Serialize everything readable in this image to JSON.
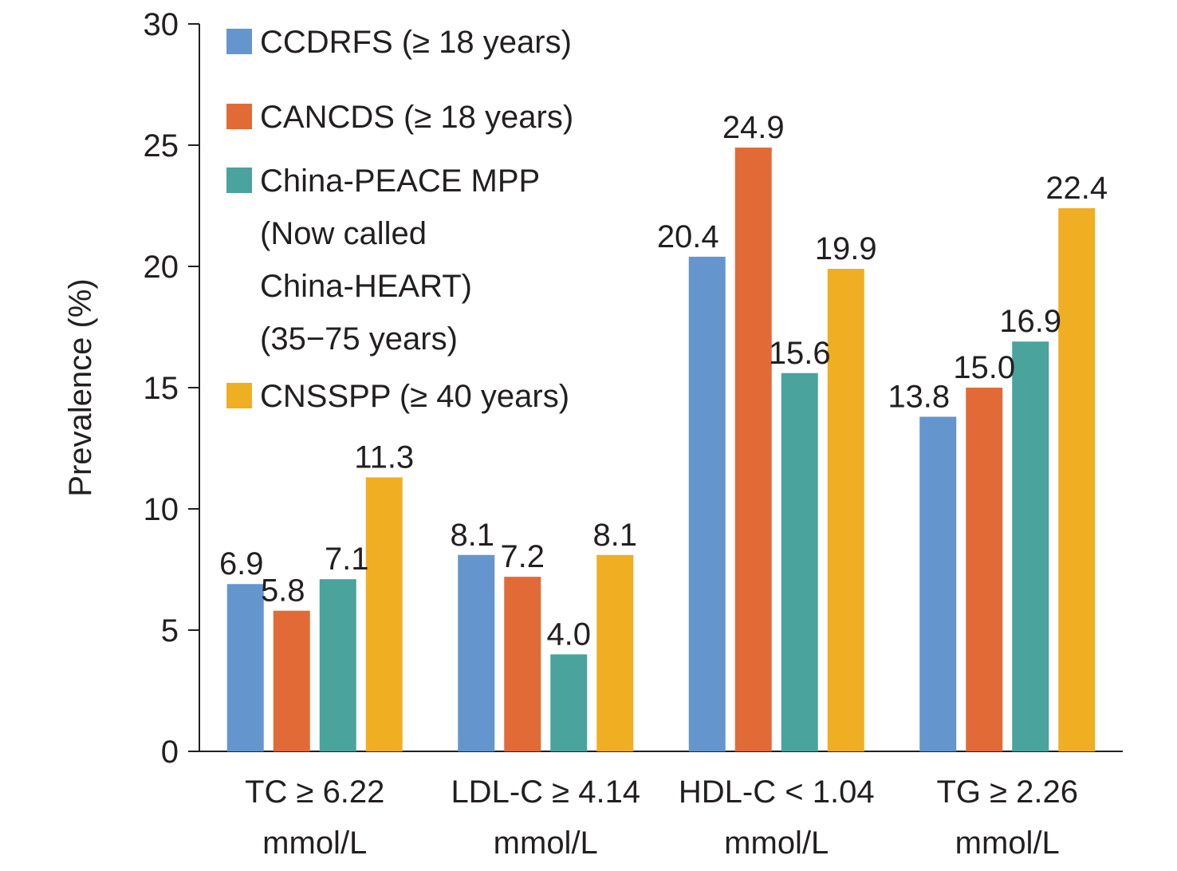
{
  "chart_data": {
    "type": "bar",
    "ylabel": "Prevalence (%)",
    "ylim": [
      0,
      30
    ],
    "yticks": [
      0,
      5,
      10,
      15,
      20,
      25,
      30
    ],
    "grid": false,
    "legend_position": "top-left",
    "categories": [
      [
        "TC ≥ 6.22",
        "mmol/L"
      ],
      [
        "LDL-C ≥ 4.14",
        "mmol/L"
      ],
      [
        "HDL-C < 1.04",
        "mmol/L"
      ],
      [
        "TG ≥ 2.26",
        "mmol/L"
      ]
    ],
    "series": [
      {
        "name": "CCDRFS (≥ 18 years)",
        "name_lines": [
          "CCDRFS (≥ 18 years)"
        ],
        "color": "#6496cd",
        "values": [
          6.9,
          8.1,
          20.4,
          13.8
        ],
        "labels": [
          "6.9",
          "8.1",
          "20.4",
          "13.8"
        ]
      },
      {
        "name": "CANCDS (≥ 18 years)",
        "name_lines": [
          "CANCDS (≥ 18 years)"
        ],
        "color": "#e26a37",
        "values": [
          5.8,
          7.2,
          24.9,
          15.0
        ],
        "labels": [
          "5.8",
          "7.2",
          "24.9",
          "15.0"
        ]
      },
      {
        "name": "China-PEACE MPP (Now called China-HEART) (35−75 years)",
        "name_lines": [
          "China-PEACE MPP",
          "(Now called",
          "China-HEART)",
          "(35−75 years)"
        ],
        "color": "#4aa39d",
        "values": [
          7.1,
          4.0,
          15.6,
          16.9
        ],
        "labels": [
          "7.1",
          "4.0",
          "15.6",
          "16.9"
        ]
      },
      {
        "name": "CNSSPP (≥ 40 years)",
        "name_lines": [
          "CNSSPP (≥ 40 years)"
        ],
        "color": "#f0ae22",
        "values": [
          11.3,
          8.1,
          19.9,
          22.4
        ],
        "labels": [
          "11.3",
          "8.1",
          "19.9",
          "22.4"
        ]
      }
    ]
  }
}
